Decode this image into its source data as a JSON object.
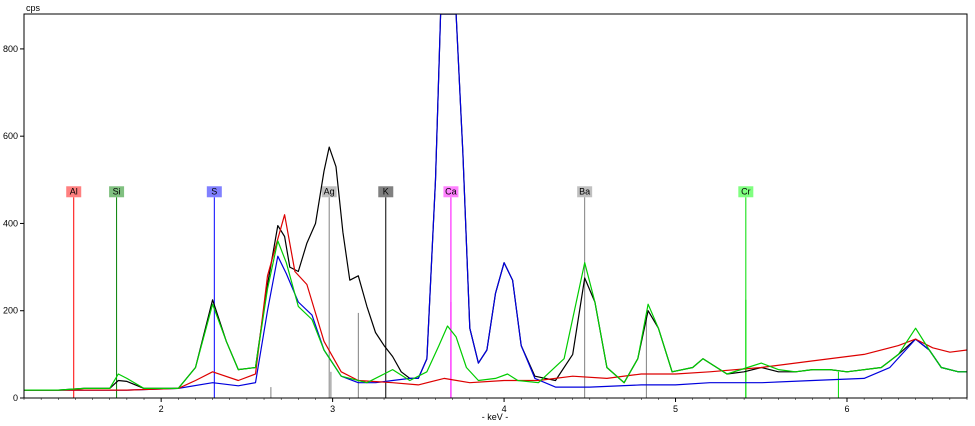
{
  "chart_data": {
    "type": "line",
    "xlabel": "- keV -",
    "ylabel": "cps",
    "xlim": [
      1.2,
      6.7
    ],
    "ylim": [
      0,
      880
    ],
    "xticks": [
      2,
      3,
      4,
      5,
      6
    ],
    "yticks": [
      0,
      200,
      400,
      600,
      800
    ],
    "grid": false,
    "series": [
      {
        "color": "#000000",
        "points": [
          [
            1.2,
            18
          ],
          [
            1.4,
            18
          ],
          [
            1.55,
            22
          ],
          [
            1.7,
            22
          ],
          [
            1.75,
            40
          ],
          [
            1.8,
            38
          ],
          [
            1.9,
            22
          ],
          [
            2.1,
            22
          ],
          [
            2.2,
            70
          ],
          [
            2.3,
            225
          ],
          [
            2.38,
            130
          ],
          [
            2.45,
            65
          ],
          [
            2.55,
            70
          ],
          [
            2.62,
            260
          ],
          [
            2.68,
            395
          ],
          [
            2.72,
            370
          ],
          [
            2.75,
            300
          ],
          [
            2.8,
            290
          ],
          [
            2.85,
            355
          ],
          [
            2.9,
            400
          ],
          [
            2.95,
            520
          ],
          [
            2.98,
            575
          ],
          [
            3.02,
            530
          ],
          [
            3.06,
            380
          ],
          [
            3.1,
            270
          ],
          [
            3.15,
            280
          ],
          [
            3.2,
            210
          ],
          [
            3.25,
            150
          ],
          [
            3.3,
            120
          ],
          [
            3.35,
            95
          ],
          [
            3.4,
            60
          ],
          [
            3.45,
            45
          ],
          [
            3.5,
            45
          ],
          [
            3.55,
            90
          ],
          [
            3.6,
            500
          ],
          [
            3.63,
            880
          ],
          [
            3.72,
            880
          ],
          [
            3.76,
            560
          ],
          [
            3.8,
            160
          ],
          [
            3.85,
            80
          ],
          [
            3.9,
            110
          ],
          [
            3.95,
            240
          ],
          [
            4.0,
            310
          ],
          [
            4.05,
            270
          ],
          [
            4.1,
            120
          ],
          [
            4.18,
            50
          ],
          [
            4.3,
            40
          ],
          [
            4.4,
            100
          ],
          [
            4.47,
            275
          ],
          [
            4.53,
            220
          ],
          [
            4.6,
            70
          ],
          [
            4.7,
            35
          ],
          [
            4.78,
            90
          ],
          [
            4.84,
            200
          ],
          [
            4.9,
            160
          ],
          [
            4.98,
            60
          ],
          [
            5.1,
            70
          ],
          [
            5.16,
            90
          ],
          [
            5.22,
            75
          ],
          [
            5.3,
            55
          ],
          [
            5.4,
            60
          ],
          [
            5.5,
            70
          ],
          [
            5.6,
            60
          ],
          [
            5.7,
            60
          ],
          [
            5.8,
            65
          ],
          [
            5.9,
            65
          ],
          [
            6.0,
            60
          ],
          [
            6.2,
            70
          ],
          [
            6.3,
            100
          ],
          [
            6.4,
            135
          ],
          [
            6.48,
            110
          ],
          [
            6.55,
            70
          ],
          [
            6.65,
            60
          ],
          [
            6.7,
            60
          ]
        ]
      },
      {
        "color": "#0000dd",
        "points": [
          [
            1.2,
            18
          ],
          [
            1.5,
            18
          ],
          [
            1.8,
            18
          ],
          [
            2.1,
            22
          ],
          [
            2.3,
            35
          ],
          [
            2.45,
            28
          ],
          [
            2.55,
            35
          ],
          [
            2.62,
            200
          ],
          [
            2.68,
            325
          ],
          [
            2.73,
            285
          ],
          [
            2.8,
            220
          ],
          [
            2.88,
            190
          ],
          [
            2.95,
            110
          ],
          [
            3.05,
            50
          ],
          [
            3.15,
            35
          ],
          [
            3.25,
            35
          ],
          [
            3.35,
            40
          ],
          [
            3.45,
            45
          ],
          [
            3.5,
            45
          ],
          [
            3.55,
            90
          ],
          [
            3.6,
            500
          ],
          [
            3.63,
            880
          ],
          [
            3.72,
            880
          ],
          [
            3.76,
            560
          ],
          [
            3.8,
            160
          ],
          [
            3.85,
            80
          ],
          [
            3.9,
            110
          ],
          [
            3.95,
            240
          ],
          [
            4.0,
            310
          ],
          [
            4.05,
            270
          ],
          [
            4.1,
            120
          ],
          [
            4.18,
            45
          ],
          [
            4.3,
            25
          ],
          [
            4.5,
            25
          ],
          [
            4.8,
            30
          ],
          [
            5.0,
            30
          ],
          [
            5.2,
            35
          ],
          [
            5.5,
            35
          ],
          [
            5.8,
            40
          ],
          [
            6.1,
            45
          ],
          [
            6.25,
            70
          ],
          [
            6.4,
            135
          ],
          [
            6.48,
            110
          ],
          [
            6.55,
            70
          ],
          [
            6.65,
            60
          ],
          [
            6.7,
            60
          ]
        ]
      },
      {
        "color": "#dd0000",
        "points": [
          [
            1.2,
            18
          ],
          [
            1.5,
            18
          ],
          [
            1.8,
            18
          ],
          [
            2.1,
            22
          ],
          [
            2.2,
            40
          ],
          [
            2.3,
            60
          ],
          [
            2.45,
            40
          ],
          [
            2.55,
            55
          ],
          [
            2.62,
            280
          ],
          [
            2.72,
            420
          ],
          [
            2.78,
            290
          ],
          [
            2.85,
            260
          ],
          [
            2.95,
            130
          ],
          [
            3.05,
            60
          ],
          [
            3.15,
            40
          ],
          [
            3.35,
            35
          ],
          [
            3.5,
            30
          ],
          [
            3.65,
            45
          ],
          [
            3.8,
            35
          ],
          [
            4.0,
            40
          ],
          [
            4.2,
            40
          ],
          [
            4.4,
            50
          ],
          [
            4.6,
            45
          ],
          [
            4.8,
            55
          ],
          [
            5.0,
            55
          ],
          [
            5.2,
            60
          ],
          [
            5.5,
            70
          ],
          [
            5.8,
            85
          ],
          [
            6.1,
            100
          ],
          [
            6.3,
            120
          ],
          [
            6.4,
            135
          ],
          [
            6.5,
            115
          ],
          [
            6.6,
            105
          ],
          [
            6.7,
            110
          ]
        ]
      },
      {
        "color": "#00cc00",
        "points": [
          [
            1.2,
            18
          ],
          [
            1.4,
            18
          ],
          [
            1.55,
            22
          ],
          [
            1.7,
            22
          ],
          [
            1.75,
            55
          ],
          [
            1.8,
            45
          ],
          [
            1.9,
            22
          ],
          [
            2.1,
            22
          ],
          [
            2.2,
            70
          ],
          [
            2.3,
            215
          ],
          [
            2.38,
            130
          ],
          [
            2.45,
            65
          ],
          [
            2.55,
            70
          ],
          [
            2.62,
            250
          ],
          [
            2.68,
            360
          ],
          [
            2.73,
            310
          ],
          [
            2.8,
            210
          ],
          [
            2.88,
            180
          ],
          [
            2.95,
            110
          ],
          [
            3.05,
            50
          ],
          [
            3.2,
            35
          ],
          [
            3.3,
            55
          ],
          [
            3.35,
            65
          ],
          [
            3.45,
            40
          ],
          [
            3.55,
            60
          ],
          [
            3.62,
            120
          ],
          [
            3.67,
            165
          ],
          [
            3.72,
            140
          ],
          [
            3.78,
            70
          ],
          [
            3.85,
            40
          ],
          [
            3.95,
            45
          ],
          [
            4.02,
            55
          ],
          [
            4.08,
            40
          ],
          [
            4.2,
            35
          ],
          [
            4.35,
            90
          ],
          [
            4.47,
            310
          ],
          [
            4.53,
            220
          ],
          [
            4.6,
            70
          ],
          [
            4.7,
            35
          ],
          [
            4.78,
            90
          ],
          [
            4.84,
            215
          ],
          [
            4.9,
            160
          ],
          [
            4.98,
            60
          ],
          [
            5.1,
            70
          ],
          [
            5.16,
            90
          ],
          [
            5.22,
            75
          ],
          [
            5.3,
            55
          ],
          [
            5.42,
            70
          ],
          [
            5.5,
            80
          ],
          [
            5.6,
            65
          ],
          [
            5.7,
            60
          ],
          [
            5.8,
            65
          ],
          [
            5.9,
            65
          ],
          [
            6.0,
            60
          ],
          [
            6.2,
            70
          ],
          [
            6.3,
            100
          ],
          [
            6.4,
            160
          ],
          [
            6.48,
            110
          ],
          [
            6.55,
            70
          ],
          [
            6.65,
            60
          ],
          [
            6.7,
            60
          ]
        ]
      }
    ],
    "element_markers": [
      {
        "label": "Al",
        "energy": 1.49,
        "color": "#ff0000",
        "box": "#ff8080",
        "top": 460
      },
      {
        "label": "Si",
        "energy": 1.74,
        "color": "#008000",
        "box": "#80c080",
        "top": 460
      },
      {
        "label": "S",
        "energy": 2.31,
        "color": "#0000ff",
        "box": "#8080ff",
        "top": 460
      },
      {
        "label": "Ag",
        "energy": 2.98,
        "color": "#808080",
        "box": "#c0c0c0",
        "top": 460
      },
      {
        "label": "K",
        "energy": 3.31,
        "color": "#000000",
        "box": "#808080",
        "top": 460
      },
      {
        "label": "Ca",
        "energy": 3.69,
        "color": "#ff00ff",
        "box": "#ff80ff",
        "top": 460
      },
      {
        "label": "Ba",
        "energy": 4.47,
        "color": "#808080",
        "box": "#c0c0c0",
        "top": 460
      },
      {
        "label": "Cr",
        "energy": 5.41,
        "color": "#00dd00",
        "box": "#80ff80",
        "top": 460
      }
    ],
    "minor_lines": [
      {
        "energy": 2.64,
        "value": 25,
        "color": "#808080"
      },
      {
        "energy": 2.99,
        "value": 60,
        "color": "#808080"
      },
      {
        "energy": 3.15,
        "value": 195,
        "color": "#808080"
      },
      {
        "energy": 3.69,
        "value": 220,
        "color": "#ff00ff"
      },
      {
        "energy": 4.83,
        "value": 190,
        "color": "#808080"
      },
      {
        "energy": 5.41,
        "value": 225,
        "color": "#00dd00"
      },
      {
        "energy": 5.95,
        "value": 60,
        "color": "#00dd00"
      }
    ]
  }
}
